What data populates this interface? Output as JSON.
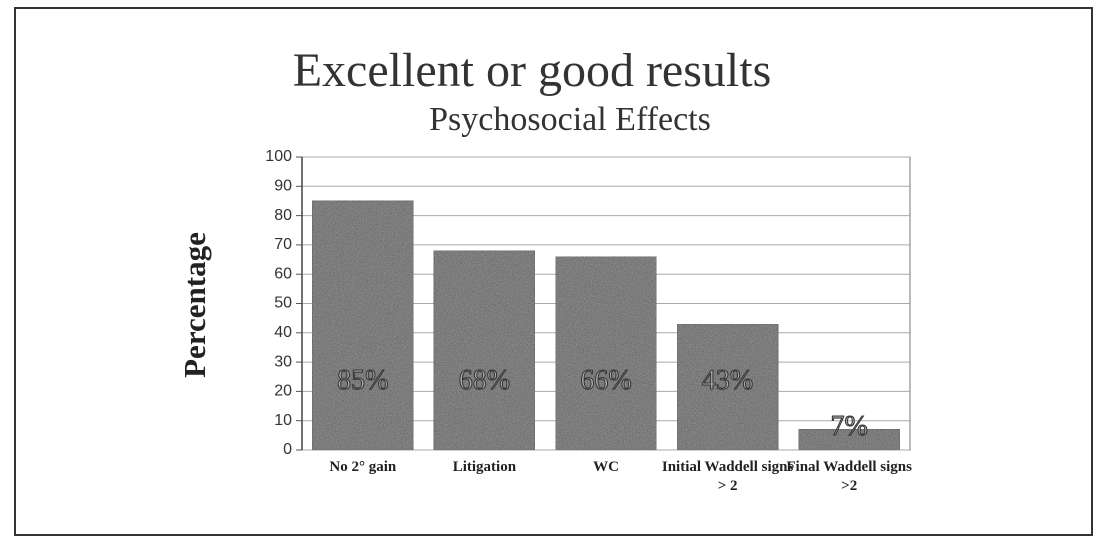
{
  "chart_data": {
    "type": "bar",
    "title": "Excellent or good results",
    "subtitle": "Psychosocial Effects",
    "y_label": "Percentage",
    "categories": [
      "No 2° gain",
      "Litigation",
      "WC",
      "Initial Waddell signs > 2",
      "Final Waddell signs >2"
    ],
    "values": [
      85,
      68,
      66,
      43,
      7
    ],
    "value_labels": [
      "85%",
      "68%",
      "66%",
      "43%",
      "7%"
    ],
    "color": "#555555",
    "ylim": [
      0,
      100
    ],
    "yticks": [
      0,
      10,
      20,
      30,
      40,
      50,
      60,
      70,
      80,
      90,
      100
    ],
    "grid": true
  }
}
